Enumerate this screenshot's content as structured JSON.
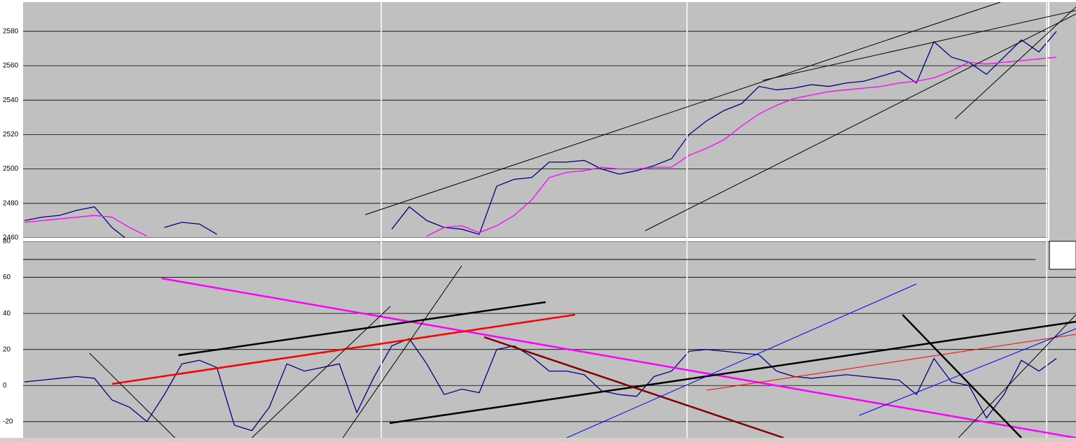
{
  "chart_data": [
    {
      "type": "line",
      "categories": [
        null,
        null,
        null,
        null,
        null,
        null,
        null,
        null,
        null,
        null,
        null,
        null,
        null,
        null,
        null,
        null,
        null,
        null,
        null,
        null,
        null,
        null,
        null,
        null,
        null,
        null,
        null,
        null,
        null,
        null,
        null,
        null,
        null,
        null,
        null,
        null,
        null,
        null,
        null,
        null,
        null,
        null,
        null,
        null,
        null,
        null,
        null,
        null,
        null,
        null,
        null,
        null,
        null,
        null,
        null,
        null,
        null,
        null,
        null,
        null
      ],
      "series": [
        {
          "color": "#000080",
          "values": [
            2470,
            2472,
            2473,
            2476,
            2478,
            2466,
            2458,
            null,
            2466,
            2469,
            2468,
            2462,
            null,
            null,
            null,
            null,
            null,
            null,
            null,
            null,
            null,
            2465,
            2478,
            2470,
            2466,
            2465,
            2462,
            2490,
            2494,
            2495,
            2504,
            2504,
            2505,
            2500,
            2497,
            2499,
            2502,
            2506,
            2520,
            2528,
            2534,
            2538,
            2548,
            2546,
            2547,
            2549,
            2548,
            2550,
            2551,
            2554,
            2557,
            2550,
            2574,
            2565,
            2562,
            2555,
            2565,
            2575,
            2568,
            2580
          ]
        },
        {
          "color": "#ff00ff",
          "values": [
            2469,
            2470,
            2471,
            2472,
            2473,
            2472,
            2466,
            2461,
            null,
            null,
            null,
            null,
            null,
            null,
            null,
            null,
            null,
            null,
            null,
            null,
            null,
            null,
            null,
            2461,
            2466,
            2467,
            2463,
            2467,
            2473,
            2482,
            2495,
            2498,
            2499,
            2501,
            2500,
            2500,
            2501,
            2501,
            2508,
            2512,
            2517,
            2525,
            2532,
            2537,
            2541,
            2543,
            2545,
            2546,
            2547,
            2548,
            2550,
            2551,
            2553,
            2557,
            2562,
            2561,
            2562,
            2563,
            2564,
            2565
          ]
        }
      ],
      "ylim": [
        2460,
        2597
      ],
      "yticks": [
        2460,
        2480,
        2500,
        2520,
        2540,
        2560,
        2580
      ],
      "grid": true
    },
    {
      "type": "line",
      "categories": [
        null,
        null,
        null,
        null,
        null,
        null,
        null,
        null,
        null,
        null,
        null,
        null,
        null,
        null,
        null,
        null,
        null,
        null,
        null,
        null,
        null,
        null,
        null,
        null,
        null,
        null,
        null,
        null,
        null,
        null,
        null,
        null,
        null,
        null,
        null,
        null,
        null,
        null,
        null,
        null,
        null,
        null,
        null,
        null,
        null,
        null,
        null,
        null,
        null,
        null,
        null,
        null,
        null,
        null,
        null,
        null,
        null,
        null,
        null,
        null
      ],
      "series": [
        {
          "color": "#000080",
          "values": [
            2,
            3,
            4,
            5,
            4,
            -8,
            -12,
            -20,
            -5,
            12,
            14,
            10,
            -22,
            -25,
            -12,
            12,
            8,
            10,
            12,
            -15,
            5,
            22,
            26,
            12,
            -5,
            -2,
            -4,
            20,
            22,
            16,
            8,
            8,
            6,
            -3,
            -5,
            -6,
            5,
            8,
            19,
            20,
            19,
            18,
            17,
            8,
            5,
            4,
            5,
            6,
            5,
            4,
            3,
            -5,
            15,
            2,
            0,
            -18,
            -5,
            14,
            8,
            15
          ]
        }
      ],
      "ylim": [
        -29,
        80
      ],
      "yticks": [
        -20,
        0,
        20,
        40,
        60,
        80
      ],
      "grid": true
    }
  ]
}
